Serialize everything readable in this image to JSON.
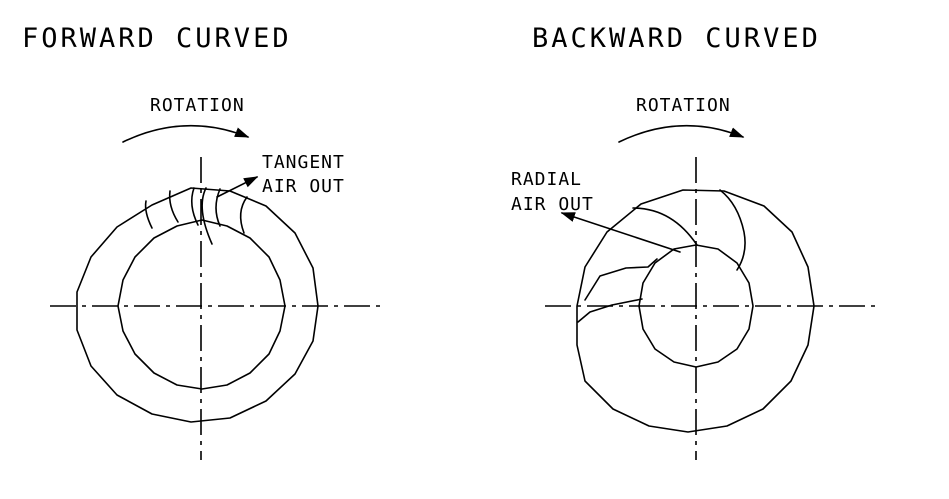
{
  "forward": {
    "title": "FORWARD CURVED",
    "rotation": "ROTATION",
    "note_line1": "TANGENT",
    "note_line2": "AIR OUT"
  },
  "backward": {
    "title": "BACKWARD CURVED",
    "rotation": "ROTATION",
    "note_line1": "RADIAL",
    "note_line2": "AIR OUT"
  },
  "colors": {
    "lines": "#000000",
    "background": "#ffffff"
  }
}
